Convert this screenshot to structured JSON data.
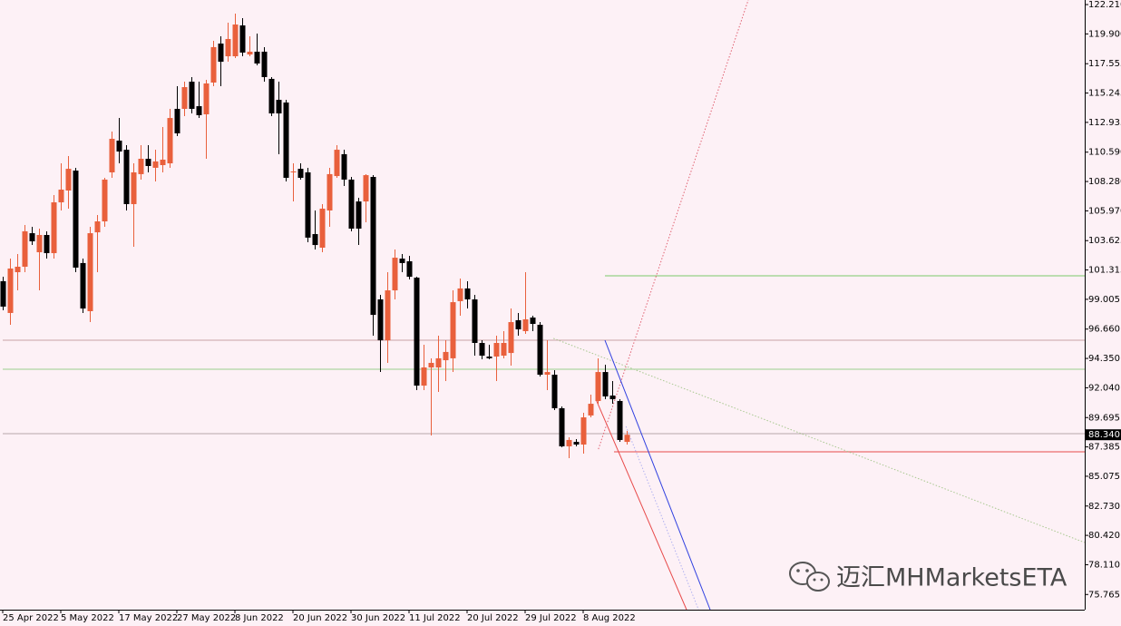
{
  "chart_data": {
    "type": "candlestick",
    "categories": [
      "25 Apr 2022",
      null,
      null,
      null,
      null,
      null,
      null,
      null,
      "5 May 2022",
      null,
      null,
      null,
      null,
      null,
      null,
      null,
      "17 May 2022",
      null,
      null,
      null,
      null,
      null,
      null,
      null,
      "27 May 2022",
      null,
      null,
      null,
      null,
      null,
      null,
      null,
      "8 Jun 2022",
      null,
      null,
      null,
      null,
      null,
      null,
      null,
      "20 Jun 2022",
      null,
      null,
      null,
      null,
      null,
      null,
      null,
      "30 Jun 2022",
      null,
      null,
      null,
      null,
      null,
      null,
      null,
      "11 Jul 2022",
      null,
      null,
      null,
      null,
      null,
      null,
      null,
      "20 Jul 2022",
      null,
      null,
      null,
      null,
      null,
      null,
      null,
      "29 Jul 2022",
      null,
      null,
      null,
      null,
      null,
      null,
      null,
      "8 Aug 2022",
      null,
      null,
      null,
      null,
      null,
      null
    ],
    "open": [
      100.43,
      97.93,
      101.14,
      101.57,
      104.21,
      102.71,
      104.07,
      102.64,
      106.64,
      107.57,
      109.14,
      101.86,
      98.07,
      104.28,
      105.14,
      109.0,
      111.5,
      110.78,
      106.5,
      108.86,
      110.07,
      109.36,
      109.57,
      109.71,
      114.0,
      114.0,
      116.14,
      114.21,
      113.57,
      116.07,
      119.14,
      118.14,
      118.14,
      120.57,
      118.28,
      118.5,
      118.5,
      116.36,
      114.71,
      114.5,
      109.0,
      109.28,
      109.0,
      104.14,
      103.07,
      106.0,
      108.71,
      110.43,
      108.43,
      106.71,
      106.71,
      108.64,
      99.0,
      95.78,
      99.71,
      102.21,
      102.0,
      100.71,
      92.21,
      93.64,
      93.64,
      94.21,
      94.36,
      98.86,
      99.86,
      99.0,
      95.57,
      94.5,
      94.5,
      94.57,
      94.78,
      97.36,
      96.5,
      97.57,
      97.0,
      93.07,
      93.07,
      90.43,
      87.43,
      87.78,
      87.57,
      89.86,
      91.0,
      93.28,
      91.43,
      91.0,
      87.78
    ],
    "high": [
      100.78,
      102.21,
      102.57,
      104.86,
      104.71,
      104.57,
      104.36,
      107.21,
      109.71,
      110.28,
      109.36,
      102.21,
      104.71,
      105.64,
      108.57,
      112.21,
      113.28,
      111.14,
      109.71,
      111.14,
      111.14,
      110.78,
      112.57,
      114.0,
      115.78,
      116.14,
      116.5,
      116.14,
      116.28,
      119.36,
      119.71,
      120.78,
      121.5,
      121.14,
      119.71,
      119.93,
      118.86,
      116.5,
      116.14,
      114.71,
      109.71,
      109.71,
      109.36,
      106.0,
      106.5,
      109.36,
      111.14,
      110.78,
      108.64,
      107.0,
      108.86,
      108.78,
      99.36,
      101.14,
      102.93,
      102.57,
      102.43,
      100.78,
      95.43,
      94.36,
      96.14,
      95.78,
      99.71,
      100.64,
      100.43,
      99.36,
      95.78,
      95.43,
      96.14,
      96.5,
      98.28,
      97.93,
      101.14,
      97.71,
      97.21,
      95.78,
      93.43,
      90.57,
      88.14,
      88.0,
      90.07,
      91.5,
      94.36,
      93.86,
      92.57,
      91.14,
      88.64
    ],
    "low": [
      98.14,
      97.0,
      99.71,
      101.14,
      103.28,
      99.71,
      102.21,
      102.21,
      106.0,
      106.14,
      101.14,
      97.93,
      97.21,
      101.14,
      104.71,
      108.57,
      109.71,
      106.0,
      103.14,
      108.43,
      109.0,
      108.28,
      109.0,
      109.36,
      111.86,
      113.43,
      113.64,
      113.28,
      110.07,
      115.78,
      115.78,
      117.71,
      118.0,
      118.14,
      118.14,
      117.43,
      116.14,
      113.43,
      110.43,
      108.28,
      106.71,
      108.43,
      103.5,
      102.93,
      102.71,
      104.71,
      108.57,
      107.93,
      104.36,
      103.28,
      105.07,
      96.14,
      93.28,
      94.0,
      99.0,
      101.14,
      100.57,
      91.86,
      91.86,
      88.28,
      91.71,
      92.57,
      93.28,
      97.71,
      98.28,
      94.57,
      94.28,
      94.28,
      92.57,
      94.36,
      93.78,
      96.14,
      96.28,
      96.5,
      92.93,
      91.86,
      90.28,
      87.36,
      86.5,
      87.43,
      86.86,
      89.71,
      90.78,
      91.14,
      90.78,
      87.78,
      87.57
    ],
    "close": [
      98.43,
      101.43,
      101.57,
      104.36,
      103.57,
      104.07,
      102.64,
      106.64,
      107.64,
      109.28,
      101.5,
      98.28,
      104.21,
      105.14,
      108.43,
      111.64,
      110.64,
      106.5,
      109.0,
      110.07,
      109.5,
      109.86,
      110.0,
      113.28,
      112.07,
      115.71,
      114.0,
      113.5,
      116.0,
      118.86,
      117.71,
      119.5,
      120.64,
      118.43,
      118.5,
      117.57,
      116.5,
      113.64,
      113.64,
      108.57,
      109.07,
      108.57,
      103.86,
      103.28,
      106.14,
      108.86,
      110.78,
      108.43,
      104.57,
      104.57,
      108.78,
      97.78,
      95.78,
      99.71,
      102.28,
      101.86,
      100.78,
      92.21,
      93.64,
      94.0,
      94.36,
      94.86,
      98.78,
      99.86,
      99.0,
      95.57,
      94.57,
      94.36,
      95.57,
      95.57,
      97.21,
      96.64,
      97.43,
      97.07,
      93.07,
      93.28,
      90.43,
      87.43,
      87.93,
      87.57,
      89.71,
      90.78,
      93.28,
      91.36,
      91.14,
      87.93,
      88.34
    ],
    "up_color": "#e9603c",
    "down_color": "#000000",
    "ylim": [
      74.57,
      122.57
    ],
    "yticks": [
      {
        "value": 122.21,
        "label": "122.210"
      },
      {
        "value": 119.9,
        "label": "119.900"
      },
      {
        "value": 117.555,
        "label": "117.555"
      },
      {
        "value": 115.245,
        "label": "115.245"
      },
      {
        "value": 112.935,
        "label": "112.935"
      },
      {
        "value": 110.59,
        "label": "110.590"
      },
      {
        "value": 108.28,
        "label": "108.280"
      },
      {
        "value": 105.97,
        "label": "105.970"
      },
      {
        "value": 103.625,
        "label": "103.625"
      },
      {
        "value": 101.315,
        "label": "101.315"
      },
      {
        "value": 99.005,
        "label": "99.005"
      },
      {
        "value": 96.66,
        "label": "96.660"
      },
      {
        "value": 94.35,
        "label": "94.350"
      },
      {
        "value": 92.04,
        "label": "92.040"
      },
      {
        "value": 89.695,
        "label": "89.695"
      },
      {
        "value": 87.385,
        "label": "87.385"
      },
      {
        "value": 85.075,
        "label": "85.075"
      },
      {
        "value": 82.73,
        "label": "82.730"
      },
      {
        "value": 80.42,
        "label": "80.420"
      },
      {
        "value": 78.11,
        "label": "78.110"
      },
      {
        "value": 75.765,
        "label": "75.765"
      }
    ],
    "current_price": {
      "value": 88.34,
      "label": "88.340"
    },
    "hlines": [
      {
        "y": 95.78,
        "x_start": 0,
        "color": "#c9a3a6"
      },
      {
        "y": 93.5,
        "x_start": 0,
        "color": "#9ccf8f"
      },
      {
        "y": 88.43,
        "x_start": 0,
        "color": "#b8a7ab"
      },
      {
        "y": 100.86,
        "x_start": 83,
        "color": "#7cc96a"
      },
      {
        "y": 87.0,
        "x_start": 84.25,
        "color": "#e84a4a"
      }
    ],
    "trendlines": [
      {
        "x": [
          82.1,
          102.75
        ],
        "y": [
          87.21,
          122.57
        ],
        "color": "#e06070",
        "dash": true
      },
      {
        "x": [
          75.9,
          149.1
        ],
        "y": [
          95.93,
          79.86
        ],
        "color": "#a8c890",
        "dash": true
      },
      {
        "x": [
          83,
          97.5
        ],
        "y": [
          95.78,
          74.57
        ],
        "color": "#3040e0",
        "dash": false
      },
      {
        "x": [
          81.75,
          94.25
        ],
        "y": [
          91.14,
          74.57
        ],
        "color": "#e84a4a",
        "dash": false
      },
      {
        "x": [
          85.9,
          95.9
        ],
        "y": [
          89.0,
          74.57
        ],
        "color": "#b0b0f0",
        "dash": true
      }
    ],
    "watermark": "迈汇MHMarketsETA"
  }
}
